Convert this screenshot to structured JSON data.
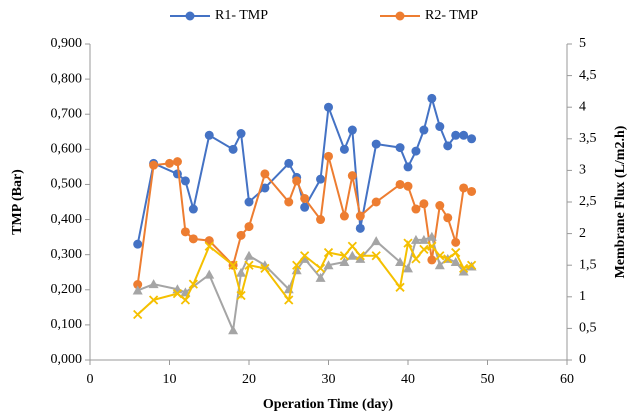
{
  "chart_data": {
    "type": "line",
    "x_label": "Operation Time (day)",
    "y_label": "TMP (Bar)",
    "y2_label": "Membrane Flux (L/m2.h)",
    "xlim": [
      0,
      60
    ],
    "xticks": [
      0,
      10,
      20,
      30,
      40,
      50,
      60
    ],
    "ylim": [
      0,
      0.9
    ],
    "yticks": [
      {
        "value": 0,
        "label": "0,000"
      },
      {
        "value": 0.1,
        "label": "0,100"
      },
      {
        "value": 0.2,
        "label": "0,200"
      },
      {
        "value": 0.3,
        "label": "0,300"
      },
      {
        "value": 0.4,
        "label": "0,400"
      },
      {
        "value": 0.5,
        "label": "0,500"
      },
      {
        "value": 0.6,
        "label": "0,600"
      },
      {
        "value": 0.7,
        "label": "0,700"
      },
      {
        "value": 0.8,
        "label": "0,800"
      },
      {
        "value": 0.9,
        "label": "0,900"
      }
    ],
    "y2lim": [
      0,
      5
    ],
    "y2ticks": [
      0,
      {
        "value": 0.5,
        "label": "0,5"
      },
      1,
      {
        "value": 1.5,
        "label": "1,5"
      },
      2,
      {
        "value": 2.5,
        "label": "2,5"
      },
      3,
      {
        "value": 3.5,
        "label": "3,5"
      },
      4,
      {
        "value": 4.5,
        "label": "4,5"
      },
      5
    ],
    "legend": "top",
    "series": [
      {
        "name": "R1- TMP",
        "color": "#4472c4",
        "marker": "circle",
        "x": [
          6,
          8,
          11,
          12,
          13,
          15,
          18,
          19,
          20,
          22,
          25,
          26,
          27,
          29,
          30,
          32,
          33,
          34,
          36,
          39,
          40,
          41,
          42,
          43,
          44,
          45,
          46,
          47,
          48
        ],
        "values": [
          0.33,
          0.56,
          0.53,
          0.51,
          0.43,
          0.64,
          0.6,
          0.645,
          0.45,
          0.49,
          0.56,
          0.52,
          0.435,
          0.515,
          0.72,
          0.6,
          0.655,
          0.375,
          0.615,
          0.605,
          0.55,
          0.595,
          0.655,
          0.745,
          0.665,
          0.61,
          0.64,
          0.64,
          0.63
        ]
      },
      {
        "name": "R2- TMP",
        "color": "#ed7d31",
        "marker": "circle",
        "x": [
          6,
          8,
          10,
          11,
          12,
          13,
          15,
          18,
          19,
          20,
          22,
          25,
          26,
          27,
          29,
          30,
          32,
          33,
          34,
          36,
          39,
          40,
          41,
          42,
          43,
          44,
          45,
          46,
          47,
          48
        ],
        "values": [
          0.215,
          0.555,
          0.56,
          0.565,
          0.365,
          0.345,
          0.34,
          0.27,
          0.355,
          0.38,
          0.53,
          0.45,
          0.51,
          0.46,
          0.4,
          0.58,
          0.41,
          0.525,
          0.41,
          0.45,
          0.5,
          0.495,
          0.43,
          0.445,
          0.285,
          0.44,
          0.405,
          0.335,
          0.49,
          0.48
        ]
      },
      {
        "color": "#a5a5a5",
        "marker": "triangle",
        "axis": "y2",
        "x": [
          6,
          8,
          11,
          12,
          15,
          18,
          19,
          20,
          22,
          25,
          26,
          27,
          29,
          30,
          32,
          33,
          34,
          36,
          39,
          40,
          41,
          42,
          43,
          44,
          45,
          46,
          47,
          48
        ],
        "values": [
          1.1,
          1.2,
          1.12,
          1.07,
          1.35,
          0.47,
          1.38,
          1.65,
          1.5,
          1.12,
          1.42,
          1.6,
          1.3,
          1.5,
          1.55,
          1.65,
          1.6,
          1.88,
          1.55,
          1.45,
          1.9,
          1.9,
          1.95,
          1.5,
          1.6,
          1.55,
          1.4,
          1.48
        ]
      },
      {
        "color": "#f5c000",
        "marker": "x",
        "axis": "y2",
        "x": [
          6,
          8,
          11,
          12,
          13,
          15,
          18,
          19,
          20,
          22,
          25,
          26,
          27,
          29,
          30,
          32,
          33,
          34,
          36,
          39,
          40,
          41,
          42,
          43,
          44,
          45,
          46,
          47,
          48
        ],
        "values": [
          0.72,
          0.95,
          1.05,
          0.95,
          1.2,
          1.8,
          1.5,
          1.02,
          1.5,
          1.45,
          0.95,
          1.5,
          1.65,
          1.45,
          1.7,
          1.65,
          1.8,
          1.65,
          1.65,
          1.15,
          1.85,
          1.6,
          1.75,
          1.8,
          1.65,
          1.6,
          1.7,
          1.45,
          1.5
        ]
      }
    ]
  }
}
